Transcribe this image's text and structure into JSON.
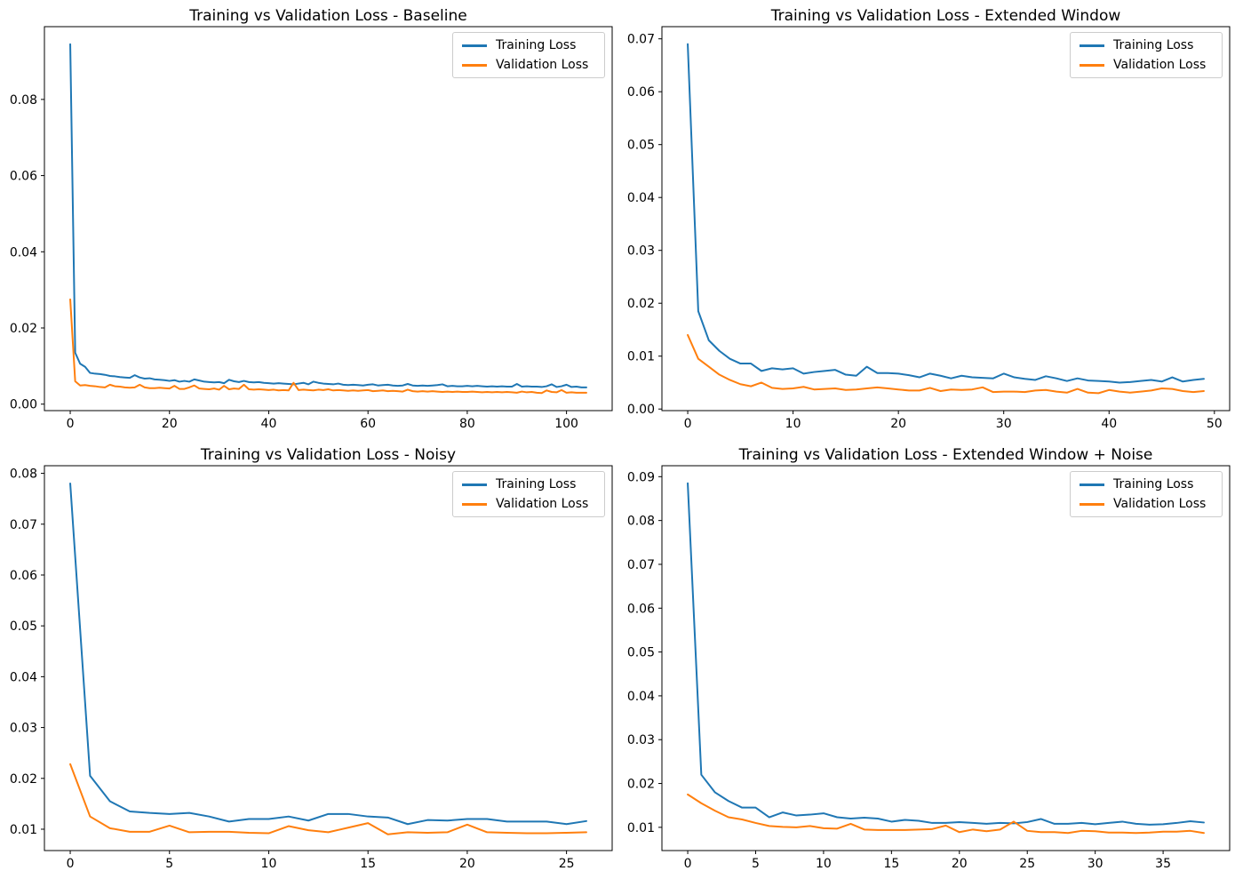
{
  "figure": {
    "background": "#ffffff",
    "axis_color": "#000000",
    "tick_label_color": "#000000",
    "legend_border_color": "#cccccc",
    "training_color": "#1f77b4",
    "validation_color": "#ff7f0e"
  },
  "chart_data": [
    {
      "type": "line",
      "title": "Training vs Validation Loss - Baseline",
      "x_start": 0,
      "x_step": 1,
      "xlim": [
        -5.2,
        109.2
      ],
      "ylim": [
        -0.0017,
        0.0991
      ],
      "xticks": [
        0,
        20,
        40,
        60,
        80,
        100
      ],
      "xtick_labels": [
        "0",
        "20",
        "40",
        "60",
        "80",
        "100"
      ],
      "yticks": [
        0.0,
        0.02,
        0.04,
        0.06,
        0.08
      ],
      "ytick_labels": [
        "0.00",
        "0.02",
        "0.04",
        "0.06",
        "0.08"
      ],
      "grid": false,
      "legend_position": "upper right",
      "series": [
        {
          "name": "Training Loss",
          "color": "#1f77b4",
          "values": [
            0.0945,
            0.0135,
            0.0106,
            0.0098,
            0.0082,
            0.008,
            0.0079,
            0.0077,
            0.0074,
            0.0073,
            0.0071,
            0.007,
            0.0069,
            0.0076,
            0.007,
            0.0067,
            0.0068,
            0.0065,
            0.0064,
            0.0063,
            0.0061,
            0.0063,
            0.0059,
            0.0061,
            0.0059,
            0.0065,
            0.0062,
            0.0059,
            0.0058,
            0.0057,
            0.0058,
            0.0055,
            0.0064,
            0.006,
            0.0058,
            0.0061,
            0.0058,
            0.0057,
            0.0058,
            0.0056,
            0.0055,
            0.0054,
            0.0055,
            0.0054,
            0.0053,
            0.0052,
            0.0054,
            0.0056,
            0.0052,
            0.0059,
            0.0056,
            0.0054,
            0.0053,
            0.0052,
            0.0054,
            0.0051,
            0.005,
            0.0051,
            0.005,
            0.0049,
            0.0051,
            0.0052,
            0.0049,
            0.005,
            0.0051,
            0.0049,
            0.0048,
            0.0049,
            0.0053,
            0.0049,
            0.0048,
            0.0049,
            0.0048,
            0.0049,
            0.005,
            0.0052,
            0.0047,
            0.0048,
            0.0047,
            0.0047,
            0.0048,
            0.0047,
            0.0048,
            0.0047,
            0.0046,
            0.0047,
            0.0046,
            0.0047,
            0.0046,
            0.0046,
            0.0053,
            0.0046,
            0.0047,
            0.0046,
            0.0046,
            0.0045,
            0.0047,
            0.0052,
            0.0045,
            0.0047,
            0.0051,
            0.0045,
            0.0046,
            0.0044,
            0.0044
          ]
        },
        {
          "name": "Validation Loss",
          "color": "#ff7f0e",
          "values": [
            0.0275,
            0.006,
            0.0049,
            0.005,
            0.0048,
            0.0047,
            0.0045,
            0.0044,
            0.0051,
            0.0047,
            0.0046,
            0.0044,
            0.0043,
            0.0044,
            0.0051,
            0.0044,
            0.0042,
            0.0042,
            0.0043,
            0.0042,
            0.0041,
            0.0048,
            0.004,
            0.004,
            0.0044,
            0.0049,
            0.0041,
            0.004,
            0.0039,
            0.0041,
            0.0038,
            0.0048,
            0.0039,
            0.0041,
            0.004,
            0.0051,
            0.0039,
            0.0038,
            0.0039,
            0.0038,
            0.0037,
            0.0038,
            0.0036,
            0.0037,
            0.0036,
            0.0056,
            0.0037,
            0.0038,
            0.0037,
            0.0036,
            0.0038,
            0.0037,
            0.0039,
            0.0036,
            0.0037,
            0.0036,
            0.0035,
            0.0036,
            0.0035,
            0.0036,
            0.0037,
            0.0034,
            0.0035,
            0.0036,
            0.0034,
            0.0035,
            0.0034,
            0.0033,
            0.0038,
            0.0034,
            0.0033,
            0.0034,
            0.0033,
            0.0034,
            0.0033,
            0.0032,
            0.0033,
            0.0032,
            0.0033,
            0.0032,
            0.0032,
            0.0033,
            0.0032,
            0.0031,
            0.0032,
            0.0031,
            0.0032,
            0.0031,
            0.0032,
            0.0031,
            0.003,
            0.0033,
            0.0031,
            0.0032,
            0.003,
            0.0029,
            0.0036,
            0.0032,
            0.0031,
            0.0037,
            0.003,
            0.0031,
            0.003,
            0.003,
            0.003
          ]
        }
      ]
    },
    {
      "type": "line",
      "title": "Training vs Validation Loss - Extended Window",
      "x_start": 0,
      "x_step": 1,
      "xlim": [
        -2.45,
        51.45
      ],
      "ylim": [
        -0.0003,
        0.0723
      ],
      "xticks": [
        0,
        10,
        20,
        30,
        40,
        50
      ],
      "xtick_labels": [
        "0",
        "10",
        "20",
        "30",
        "40",
        "50"
      ],
      "yticks": [
        0.0,
        0.01,
        0.02,
        0.03,
        0.04,
        0.05,
        0.06,
        0.07
      ],
      "ytick_labels": [
        "0.00",
        "0.01",
        "0.02",
        "0.03",
        "0.04",
        "0.05",
        "0.06",
        "0.07"
      ],
      "grid": false,
      "legend_position": "upper right",
      "series": [
        {
          "name": "Training Loss",
          "color": "#1f77b4",
          "values": [
            0.069,
            0.0185,
            0.013,
            0.011,
            0.0095,
            0.0086,
            0.0086,
            0.0072,
            0.0077,
            0.0075,
            0.0077,
            0.0067,
            0.007,
            0.0072,
            0.0074,
            0.0065,
            0.0063,
            0.008,
            0.0068,
            0.0068,
            0.0067,
            0.0064,
            0.006,
            0.0067,
            0.0063,
            0.0058,
            0.0063,
            0.006,
            0.0059,
            0.0058,
            0.0067,
            0.006,
            0.0057,
            0.0055,
            0.0062,
            0.0058,
            0.0053,
            0.0058,
            0.0054,
            0.0053,
            0.0052,
            0.005,
            0.0051,
            0.0053,
            0.0055,
            0.0052,
            0.006,
            0.0052,
            0.0055,
            0.0057
          ]
        },
        {
          "name": "Validation Loss",
          "color": "#ff7f0e",
          "values": [
            0.014,
            0.0095,
            0.008,
            0.0065,
            0.0055,
            0.0047,
            0.0043,
            0.005,
            0.004,
            0.0038,
            0.0039,
            0.0042,
            0.0037,
            0.0038,
            0.0039,
            0.0036,
            0.0037,
            0.0039,
            0.0041,
            0.0039,
            0.0037,
            0.0035,
            0.0035,
            0.004,
            0.0034,
            0.0037,
            0.0036,
            0.0037,
            0.0041,
            0.0032,
            0.0033,
            0.0033,
            0.0032,
            0.0035,
            0.0036,
            0.0033,
            0.0031,
            0.0038,
            0.0031,
            0.003,
            0.0036,
            0.0033,
            0.0031,
            0.0033,
            0.0035,
            0.0039,
            0.0038,
            0.0034,
            0.0032,
            0.0034
          ]
        }
      ]
    },
    {
      "type": "line",
      "title": "Training vs Validation Loss - Noisy",
      "x_start": 0,
      "x_step": 1,
      "xlim": [
        -1.3,
        27.3
      ],
      "ylim": [
        0.0058,
        0.0815
      ],
      "xticks": [
        0,
        5,
        10,
        15,
        20,
        25
      ],
      "xtick_labels": [
        "0",
        "5",
        "10",
        "15",
        "20",
        "25"
      ],
      "yticks": [
        0.01,
        0.02,
        0.03,
        0.04,
        0.05,
        0.06,
        0.07,
        0.08
      ],
      "ytick_labels": [
        "0.01",
        "0.02",
        "0.03",
        "0.04",
        "0.05",
        "0.06",
        "0.07",
        "0.08"
      ],
      "grid": false,
      "legend_position": "upper right",
      "series": [
        {
          "name": "Training Loss",
          "color": "#1f77b4",
          "values": [
            0.078,
            0.0205,
            0.0155,
            0.0135,
            0.0132,
            0.013,
            0.0132,
            0.0125,
            0.0115,
            0.012,
            0.012,
            0.0125,
            0.0117,
            0.013,
            0.013,
            0.0125,
            0.0123,
            0.011,
            0.0118,
            0.0117,
            0.012,
            0.012,
            0.0115,
            0.0115,
            0.0115,
            0.011,
            0.0116
          ]
        },
        {
          "name": "Validation Loss",
          "color": "#ff7f0e",
          "values": [
            0.0228,
            0.0125,
            0.0102,
            0.0095,
            0.0095,
            0.0107,
            0.0094,
            0.0095,
            0.0095,
            0.0093,
            0.0092,
            0.0106,
            0.0098,
            0.0094,
            0.0103,
            0.0112,
            0.009,
            0.0094,
            0.0093,
            0.0094,
            0.0109,
            0.0094,
            0.0093,
            0.0092,
            0.0092,
            0.0093,
            0.0094
          ]
        }
      ]
    },
    {
      "type": "line",
      "title": "Training vs Validation Loss - Extended Window + Noise",
      "x_start": 0,
      "x_step": 1,
      "xlim": [
        -1.9,
        39.9
      ],
      "ylim": [
        0.0047,
        0.0925
      ],
      "xticks": [
        0,
        5,
        10,
        15,
        20,
        25,
        30,
        35
      ],
      "xtick_labels": [
        "0",
        "5",
        "10",
        "15",
        "20",
        "25",
        "30",
        "35"
      ],
      "yticks": [
        0.01,
        0.02,
        0.03,
        0.04,
        0.05,
        0.06,
        0.07,
        0.08,
        0.09
      ],
      "ytick_labels": [
        "0.01",
        "0.02",
        "0.03",
        "0.04",
        "0.05",
        "0.06",
        "0.07",
        "0.08",
        "0.09"
      ],
      "grid": false,
      "legend_position": "upper right",
      "series": [
        {
          "name": "Training Loss",
          "color": "#1f77b4",
          "values": [
            0.0885,
            0.022,
            0.018,
            0.016,
            0.0145,
            0.0145,
            0.0123,
            0.0134,
            0.0127,
            0.0129,
            0.0132,
            0.0123,
            0.012,
            0.0122,
            0.012,
            0.0113,
            0.0117,
            0.0115,
            0.011,
            0.011,
            0.0112,
            0.011,
            0.0108,
            0.011,
            0.0109,
            0.0112,
            0.0119,
            0.0108,
            0.0108,
            0.011,
            0.0107,
            0.011,
            0.0113,
            0.0108,
            0.0106,
            0.0107,
            0.011,
            0.0114,
            0.0111
          ]
        },
        {
          "name": "Validation Loss",
          "color": "#ff7f0e",
          "values": [
            0.0175,
            0.0155,
            0.0138,
            0.0123,
            0.0118,
            0.011,
            0.0103,
            0.0101,
            0.01,
            0.0103,
            0.0098,
            0.0097,
            0.0108,
            0.0095,
            0.0094,
            0.0094,
            0.0094,
            0.0095,
            0.0096,
            0.0104,
            0.0089,
            0.0095,
            0.0091,
            0.0095,
            0.0113,
            0.0092,
            0.0089,
            0.0089,
            0.0087,
            0.0092,
            0.0091,
            0.0088,
            0.0088,
            0.0087,
            0.0088,
            0.009,
            0.009,
            0.0092,
            0.0087
          ]
        }
      ]
    }
  ]
}
